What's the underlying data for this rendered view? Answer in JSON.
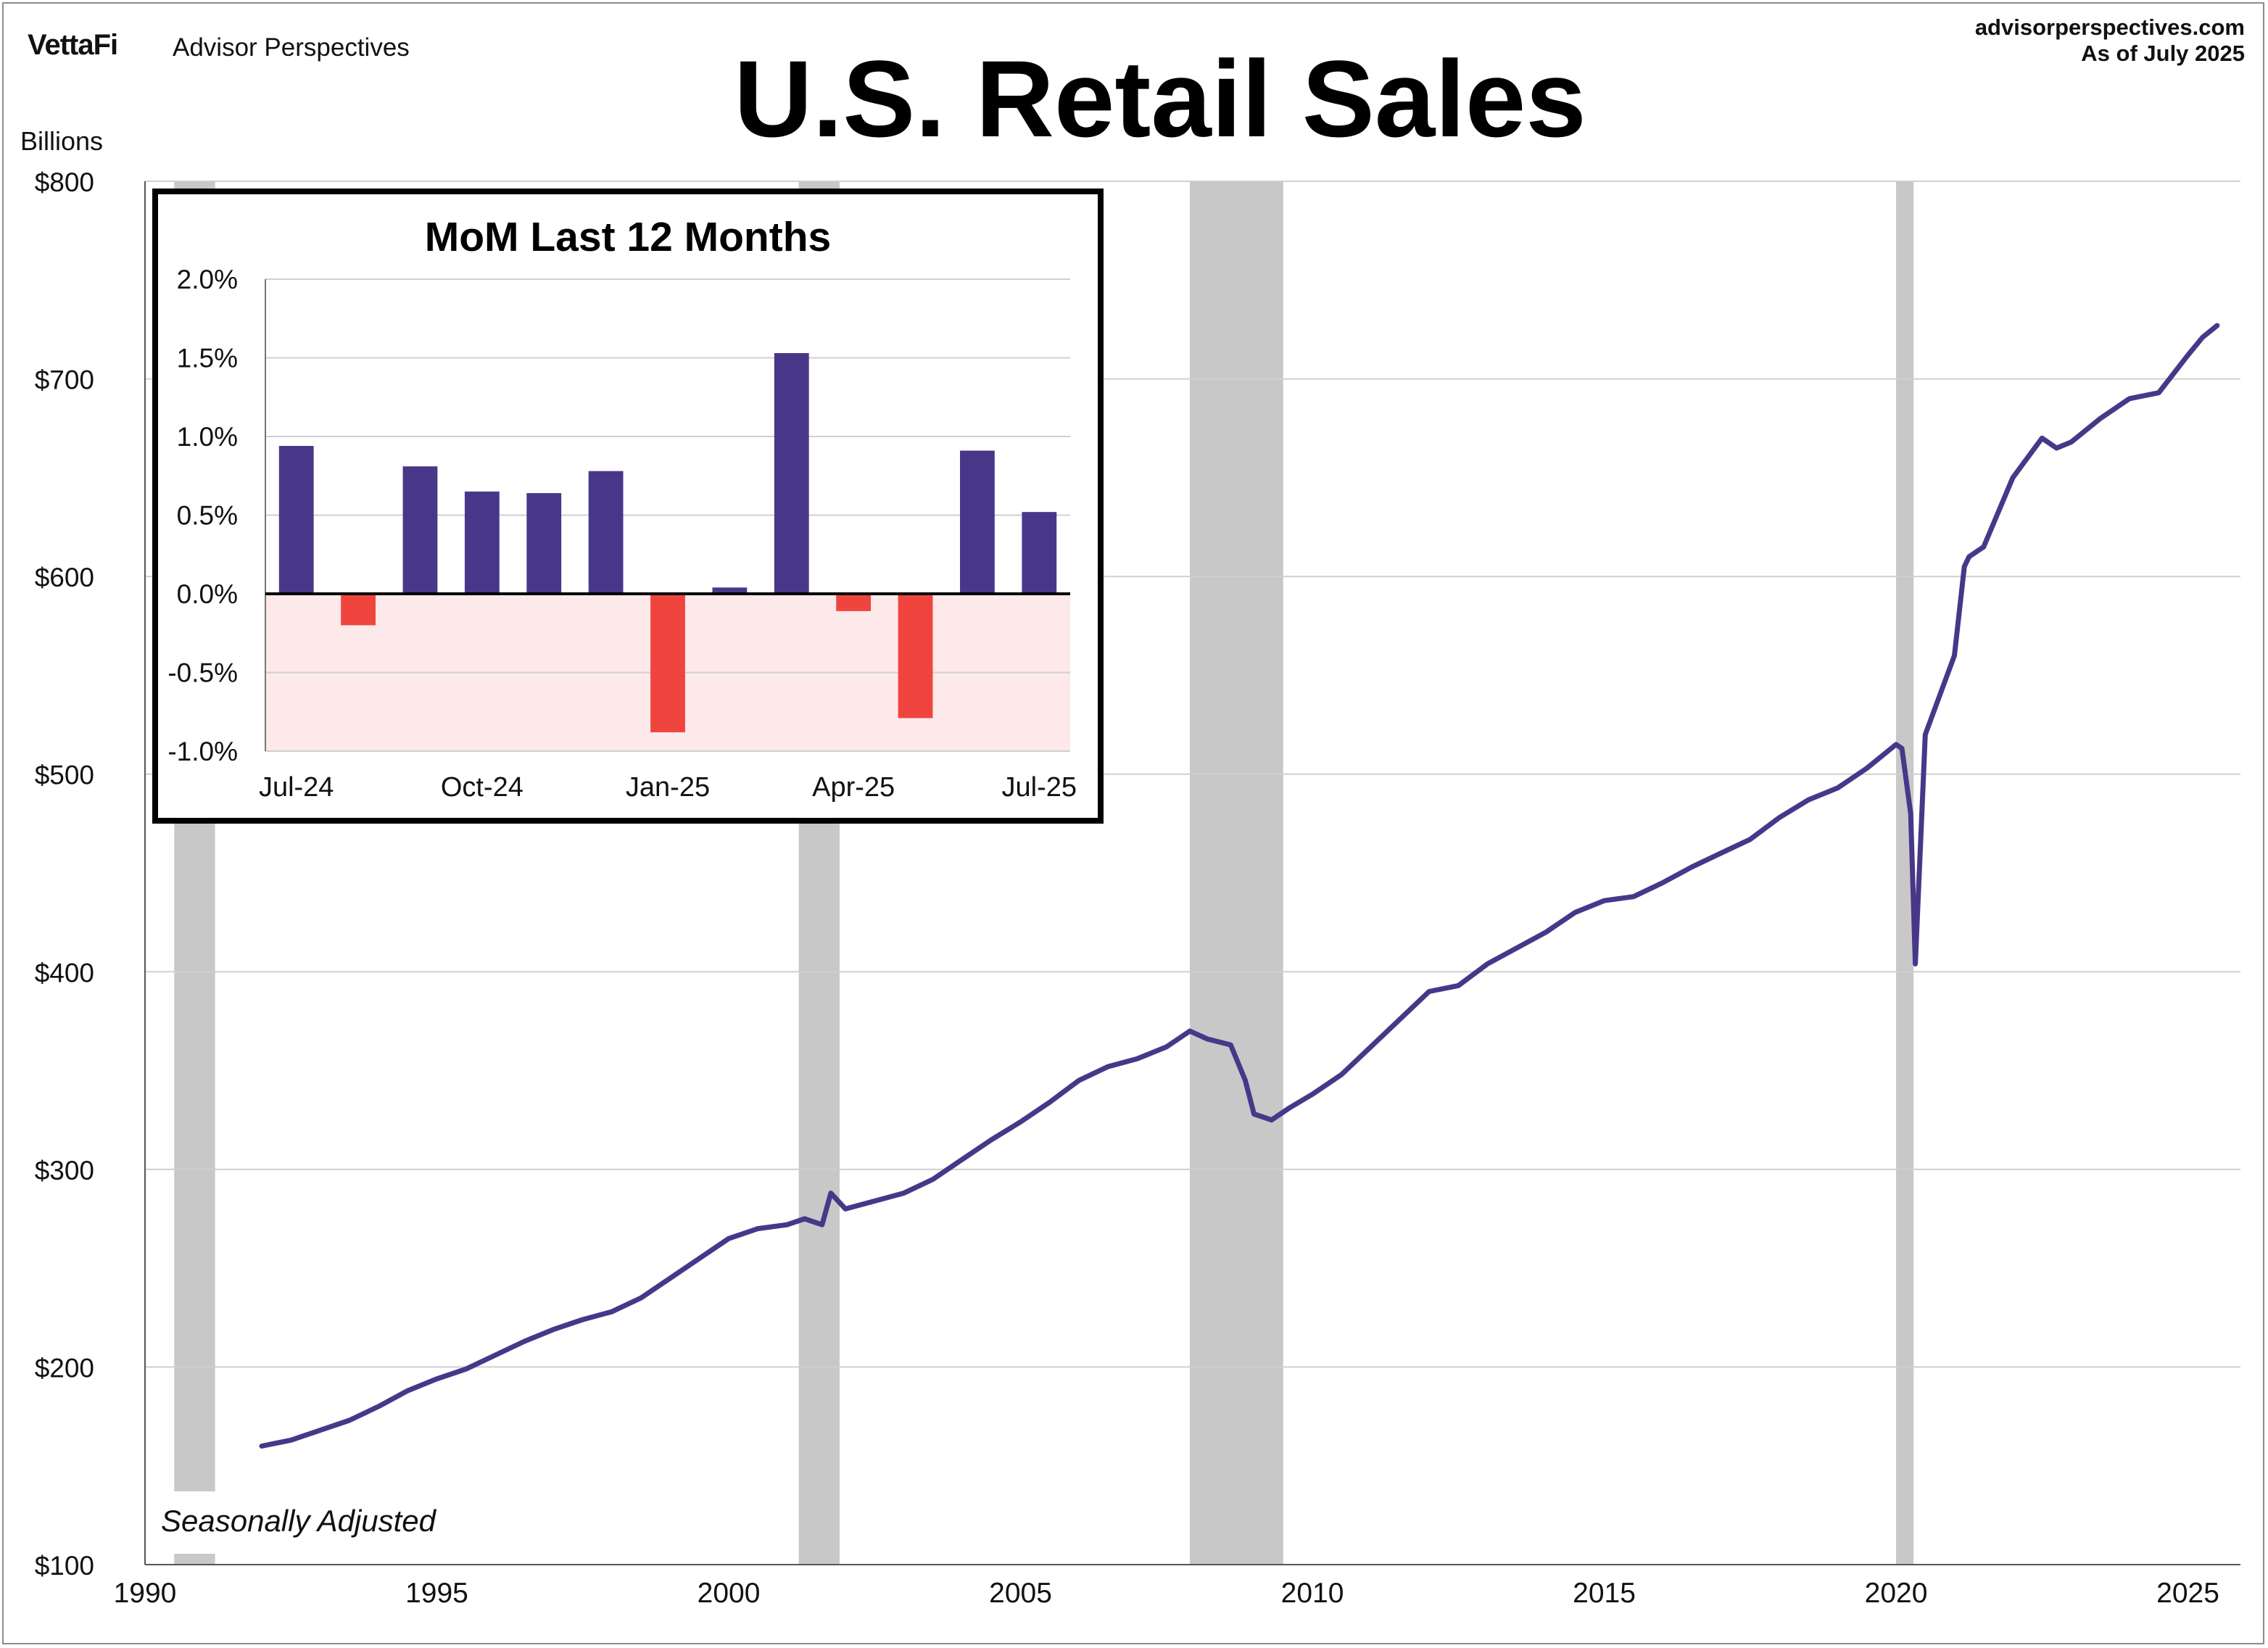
{
  "header": {
    "brand": "VettaFi",
    "brand_sub": "Advisor Perspectives",
    "site": "advisorperspectives.com",
    "as_of": "As of July 2025"
  },
  "colors": {
    "line": "#483789",
    "bar_positive": "#483789",
    "bar_negative": "#f0453f",
    "recession": "#c8c8c8",
    "grid": "#d0d0d0",
    "negative_zone": "#fde9e9"
  },
  "chart_data": [
    {
      "type": "line",
      "title": "U.S. Retail Sales",
      "ylabel": "Billions",
      "xlabel": "",
      "note": "Seasonally Adjusted",
      "xlim": [
        1990,
        2025.9
      ],
      "ylim": [
        100,
        800
      ],
      "x_ticks": [
        1990,
        1995,
        2000,
        2005,
        2010,
        2015,
        2020,
        2025
      ],
      "y_ticks": [
        {
          "value": 100,
          "label": "$100"
        },
        {
          "value": 200,
          "label": "$200"
        },
        {
          "value": 300,
          "label": "$300"
        },
        {
          "value": 400,
          "label": "$400"
        },
        {
          "value": 500,
          "label": "$500"
        },
        {
          "value": 600,
          "label": "$600"
        },
        {
          "value": 700,
          "label": "$700"
        },
        {
          "value": 800,
          "label": "$800"
        }
      ],
      "grid": true,
      "recessions": [
        [
          1990.5,
          1991.2
        ],
        [
          2001.2,
          2001.9
        ],
        [
          2007.9,
          2009.5
        ],
        [
          2020.0,
          2020.3
        ]
      ],
      "series": [
        {
          "x": [
            1992.0,
            1992.5,
            1993.0,
            1993.5,
            1994.0,
            1994.5,
            1995.0,
            1995.5,
            1996.0,
            1996.5,
            1997.0,
            1997.5,
            1998.0,
            1998.5,
            1999.0,
            1999.5,
            2000.0,
            2000.5,
            2001.0,
            2001.3,
            2001.6,
            2001.75,
            2002.0,
            2002.5,
            2003.0,
            2003.5,
            2004.0,
            2004.5,
            2005.0,
            2005.5,
            2006.0,
            2006.5,
            2007.0,
            2007.5,
            2007.9,
            2008.2,
            2008.6,
            2008.85,
            2009.0,
            2009.3,
            2009.6,
            2010.0,
            2010.5,
            2011.0,
            2011.5,
            2012.0,
            2012.5,
            2013.0,
            2013.5,
            2014.0,
            2014.5,
            2015.0,
            2015.5,
            2016.0,
            2016.5,
            2017.0,
            2017.5,
            2018.0,
            2018.5,
            2019.0,
            2019.5,
            2020.0,
            2020.1,
            2020.25,
            2020.33,
            2020.5,
            2020.75,
            2021.0,
            2021.17,
            2021.25,
            2021.5,
            2022.0,
            2022.5,
            2022.75,
            2023.0,
            2023.5,
            2024.0,
            2024.5,
            2025.0,
            2025.25,
            2025.5
          ],
          "values": [
            160,
            163,
            168,
            173,
            180,
            188,
            194,
            199,
            206,
            213,
            219,
            224,
            228,
            235,
            245,
            255,
            265,
            270,
            272,
            275,
            272,
            288,
            280,
            284,
            288,
            295,
            305,
            315,
            324,
            334,
            345,
            352,
            356,
            362,
            370,
            366,
            363,
            345,
            328,
            325,
            331,
            338,
            348,
            362,
            376,
            390,
            393,
            404,
            412,
            420,
            430,
            436,
            438,
            445,
            453,
            460,
            467,
            478,
            487,
            493,
            503,
            515,
            513,
            480,
            404,
            520,
            540,
            560,
            605,
            610,
            615,
            650,
            670,
            665,
            668,
            680,
            690,
            693,
            712,
            721,
            727
          ]
        }
      ]
    },
    {
      "type": "bar",
      "title": "MoM Last 12 Months",
      "categories": [
        "Jul-24",
        "Aug-24",
        "Sep-24",
        "Oct-24",
        "Nov-24",
        "Dec-24",
        "Jan-25",
        "Feb-25",
        "Mar-25",
        "Apr-25",
        "May-25",
        "Jun-25",
        "Jul-25"
      ],
      "x_tick_labels": [
        "Jul-24",
        "Oct-24",
        "Jan-25",
        "Apr-25",
        "Jul-25"
      ],
      "values": [
        0.94,
        -0.2,
        0.81,
        0.65,
        0.64,
        0.78,
        -0.88,
        0.04,
        1.53,
        -0.11,
        -0.79,
        0.91,
        0.52
      ],
      "ylim": [
        -1.0,
        2.0
      ],
      "y_ticks": [
        "2.0%",
        "1.5%",
        "1.0%",
        "0.5%",
        "0.0%",
        "-0.5%",
        "-1.0%"
      ],
      "unit": "%"
    }
  ]
}
